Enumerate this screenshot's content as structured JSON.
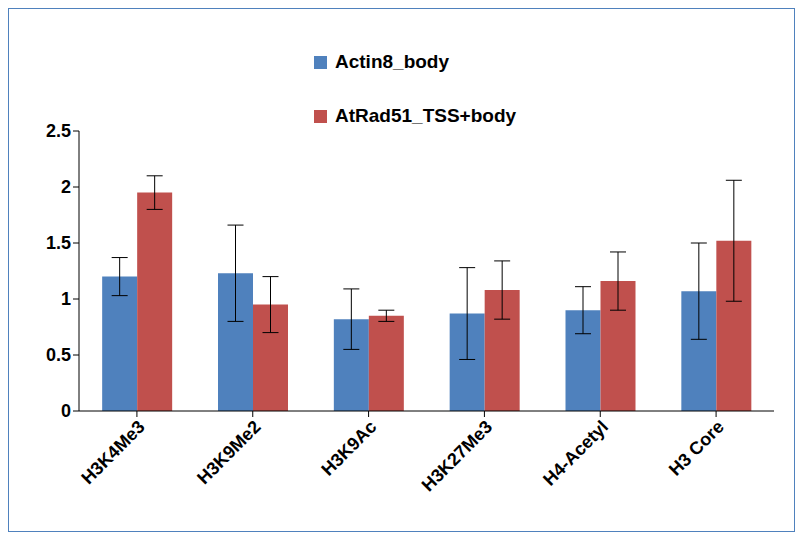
{
  "chart_data": {
    "type": "bar",
    "categories": [
      "H3K4Me3",
      "H3K9Me2",
      "H3K9Ac",
      "H3K27Me3",
      "H4-Acetyl",
      "H3 Core"
    ],
    "series": [
      {
        "name": "Actin8_body",
        "color": "#4f81bd",
        "values": [
          1.2,
          1.23,
          0.82,
          0.87,
          0.9,
          1.07
        ],
        "errors": [
          0.17,
          0.43,
          0.27,
          0.41,
          0.21,
          0.43
        ]
      },
      {
        "name": "AtRad51_TSS+body",
        "color": "#c0504d",
        "values": [
          1.95,
          0.95,
          0.85,
          1.08,
          1.16,
          1.52
        ],
        "errors": [
          0.15,
          0.25,
          0.05,
          0.26,
          0.26,
          0.54
        ]
      }
    ],
    "ylim": [
      0,
      2.5
    ],
    "yticks": [
      0,
      0.5,
      1,
      1.5,
      2,
      2.5
    ],
    "grid": false,
    "legend": "top"
  }
}
